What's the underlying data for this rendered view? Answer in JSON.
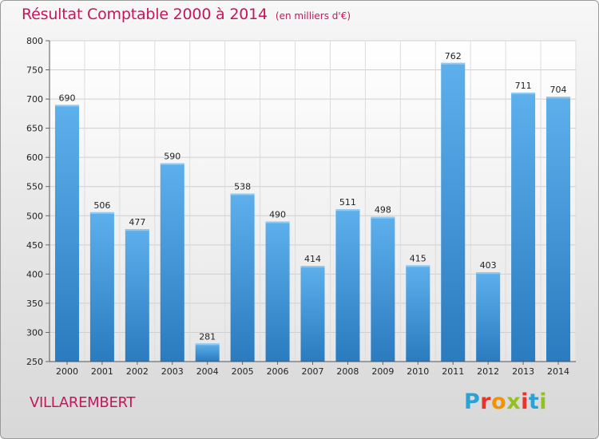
{
  "header": {
    "title": "Résultat Comptable 2000 à 2014",
    "subtitle": "(en milliers d'€)"
  },
  "footer": {
    "place": "VILLAREMBERT",
    "logo_letters": [
      "P",
      "r",
      "o",
      "x",
      "i",
      "t",
      "i"
    ],
    "logo_colors": [
      "#29a3d6",
      "#e8332a",
      "#f39200",
      "#95c11f",
      "#e8332a",
      "#29a3d6",
      "#95c11f"
    ]
  },
  "chart_data": {
    "type": "bar",
    "title": "Résultat Comptable 2000 à 2014",
    "subtitle": "(en milliers d'€)",
    "xlabel": "",
    "ylabel": "",
    "categories": [
      "2000",
      "2001",
      "2002",
      "2003",
      "2004",
      "2005",
      "2006",
      "2007",
      "2008",
      "2009",
      "2010",
      "2011",
      "2012",
      "2013",
      "2014"
    ],
    "values": [
      690,
      506,
      477,
      590,
      281,
      538,
      490,
      414,
      511,
      498,
      415,
      762,
      403,
      711,
      704
    ],
    "ylim": [
      250,
      800
    ],
    "yticks": [
      250,
      300,
      350,
      400,
      450,
      500,
      550,
      600,
      650,
      700,
      750,
      800
    ],
    "grid": true,
    "bar_color": "#4a9fe0",
    "bar_color_dark": "#2d7fc4"
  }
}
